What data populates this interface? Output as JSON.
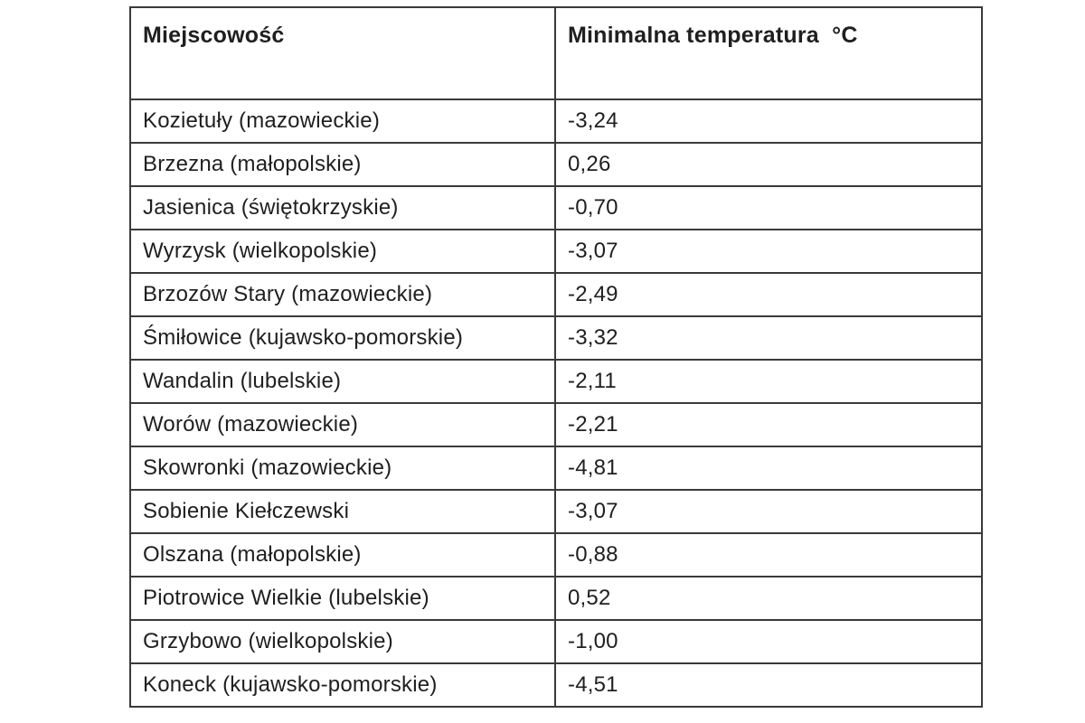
{
  "table": {
    "columns": [
      {
        "label": "Miejscowość"
      },
      {
        "label": "Minimalna temperatura  °C"
      }
    ],
    "rows": [
      {
        "place": "Kozietuły (mazowieckie)",
        "temperature": "-3,24"
      },
      {
        "place": "Brzezna (małopolskie)",
        "temperature": "0,26"
      },
      {
        "place": "Jasienica (świętokrzyskie)",
        "temperature": "-0,70"
      },
      {
        "place": "Wyrzysk (wielkopolskie)",
        "temperature": "-3,07"
      },
      {
        "place": "Brzozów Stary (mazowieckie)",
        "temperature": "-2,49"
      },
      {
        "place": "Śmiłowice (kujawsko-pomorskie)",
        "temperature": "-3,32"
      },
      {
        "place": "Wandalin (lubelskie)",
        "temperature": "-2,11"
      },
      {
        "place": "Worów (mazowieckie)",
        "temperature": "-2,21"
      },
      {
        "place": "Skowronki (mazowieckie)",
        "temperature": "-4,81"
      },
      {
        "place": "Sobienie Kiełczewski",
        "temperature": "-3,07"
      },
      {
        "place": "Olszana (małopolskie)",
        "temperature": "-0,88"
      },
      {
        "place": "Piotrowice Wielkie (lubelskie)",
        "temperature": "0,52"
      },
      {
        "place": "Grzybowo (wielkopolskie)",
        "temperature": "-1,00"
      },
      {
        "place": "Koneck (kujawsko-pomorskie)",
        "temperature": "-4,51"
      }
    ],
    "colors": {
      "border": "#3a3a3a",
      "text": "#1f1f1f",
      "background": "#ffffff"
    }
  }
}
